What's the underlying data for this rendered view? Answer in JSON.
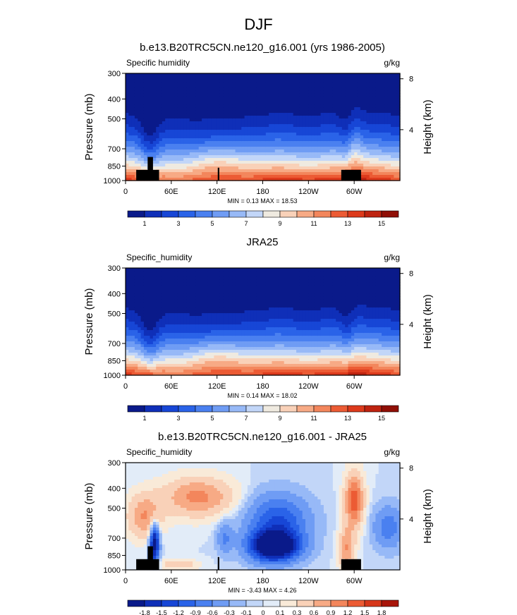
{
  "figure_title": "DJF",
  "chart_data": [
    {
      "type": "heatmap",
      "title": "b.e13.B20TRC5CN.ne120_g16.001 (yrs 1986-2005)",
      "left_label": "Specific humidity",
      "units": "g/kg",
      "ylabel": "Pressure (mb)",
      "y2label": "Height (km)",
      "x_ticks": [
        "0",
        "60E",
        "120E",
        "180",
        "120W",
        "60W"
      ],
      "x_tick_values": [
        0,
        60,
        120,
        180,
        240,
        300
      ],
      "xlim": [
        0,
        360
      ],
      "y_ticks": [
        "300",
        "400",
        "500",
        "700",
        "850",
        "1000"
      ],
      "y_tick_values": [
        300,
        400,
        500,
        700,
        850,
        1000
      ],
      "ylim": [
        1000,
        300
      ],
      "y2_ticks": [
        "8",
        "4"
      ],
      "y2_tick_values": [
        8,
        4
      ],
      "stats": "MIN =   0.13  MAX =  18.53",
      "min": 0.13,
      "max": 18.53,
      "colorbar_labels": [
        "1",
        "3",
        "5",
        "7",
        "9",
        "11",
        "13",
        "15"
      ],
      "colorbar_colors": [
        "#0a1a8a",
        "#0f2fb8",
        "#1746d6",
        "#2a63e8",
        "#4a80f0",
        "#6f9cf4",
        "#97b9f7",
        "#c2d6f8",
        "#efeae0",
        "#f9d1b8",
        "#f7aa85",
        "#f3865c",
        "#ec5b34",
        "#dd3a1c",
        "#be2310",
        "#900f06"
      ],
      "colorbar_levels": [
        0.5,
        1,
        2,
        3,
        4,
        5,
        6,
        7,
        8,
        9,
        10,
        11,
        12,
        13,
        14,
        15,
        16
      ],
      "model": "model",
      "has_topography": true
    },
    {
      "type": "heatmap",
      "title": "JRA25",
      "left_label": "Specific_humidity",
      "units": "g/kg",
      "ylabel": "Pressure (mb)",
      "y2label": "Height (km)",
      "x_ticks": [
        "0",
        "60E",
        "120E",
        "180",
        "120W",
        "60W"
      ],
      "x_tick_values": [
        0,
        60,
        120,
        180,
        240,
        300
      ],
      "xlim": [
        0,
        360
      ],
      "y_ticks": [
        "300",
        "400",
        "500",
        "700",
        "850",
        "1000"
      ],
      "y_tick_values": [
        300,
        400,
        500,
        700,
        850,
        1000
      ],
      "ylim": [
        1000,
        300
      ],
      "y2_ticks": [
        "8",
        "4"
      ],
      "y2_tick_values": [
        8,
        4
      ],
      "stats": "MIN =   0.14  MAX =  18.02",
      "min": 0.14,
      "max": 18.02,
      "colorbar_labels": [
        "1",
        "3",
        "5",
        "7",
        "9",
        "11",
        "13",
        "15"
      ],
      "colorbar_colors": [
        "#0a1a8a",
        "#0f2fb8",
        "#1746d6",
        "#2a63e8",
        "#4a80f0",
        "#6f9cf4",
        "#97b9f7",
        "#c2d6f8",
        "#efeae0",
        "#f9d1b8",
        "#f7aa85",
        "#f3865c",
        "#ec5b34",
        "#dd3a1c",
        "#be2310",
        "#900f06"
      ],
      "colorbar_levels": [
        0.5,
        1,
        2,
        3,
        4,
        5,
        6,
        7,
        8,
        9,
        10,
        11,
        12,
        13,
        14,
        15,
        16
      ],
      "model": "obs",
      "has_topography": false
    },
    {
      "type": "heatmap",
      "title": "b.e13.B20TRC5CN.ne120_g16.001 - JRA25",
      "left_label": "Specific_humidity",
      "units": "g/kg",
      "ylabel": "Pressure (mb)",
      "y2label": "Height (km)",
      "x_ticks": [
        "0",
        "60E",
        "120E",
        "180",
        "120W",
        "60W"
      ],
      "x_tick_values": [
        0,
        60,
        120,
        180,
        240,
        300
      ],
      "xlim": [
        0,
        360
      ],
      "y_ticks": [
        "300",
        "400",
        "500",
        "700",
        "850",
        "1000"
      ],
      "y_tick_values": [
        300,
        400,
        500,
        700,
        850,
        1000
      ],
      "ylim": [
        1000,
        300
      ],
      "y2_ticks": [
        "8",
        "4"
      ],
      "y2_tick_values": [
        8,
        4
      ],
      "stats": "MIN =  -3.43  MAX =   4.26",
      "min": -3.43,
      "max": 4.26,
      "colorbar_labels": [
        "-1.8",
        "-1.5",
        "-1.2",
        "-0.9",
        "-0.6",
        "-0.3",
        "-0.1",
        "0",
        "0.1",
        "0.3",
        "0.6",
        "0.9",
        "1.2",
        "1.5",
        "1.8"
      ],
      "colorbar_colors": [
        "#0a1a8a",
        "#0f2fb8",
        "#1746d6",
        "#2a63e8",
        "#4a80f0",
        "#6f9cf4",
        "#97b9f7",
        "#c2d6f8",
        "#e2ecf8",
        "#f9ead8",
        "#f9d1b8",
        "#f7aa85",
        "#f3865c",
        "#ec5b34",
        "#d6371a",
        "#a8150a"
      ],
      "colorbar_levels": [
        -2.4,
        -1.8,
        -1.5,
        -1.2,
        -0.9,
        -0.6,
        -0.3,
        -0.1,
        0,
        0.1,
        0.3,
        0.6,
        0.9,
        1.2,
        1.5,
        1.8,
        2.4
      ],
      "model": "diff",
      "has_topography": true
    }
  ]
}
